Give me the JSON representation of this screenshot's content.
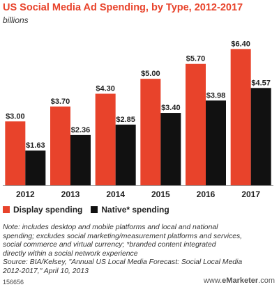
{
  "chart_data": {
    "type": "bar",
    "title": "US Social Media Ad Spending, by Type, 2012-2017",
    "subtitle": "billions",
    "categories": [
      "2012",
      "2013",
      "2014",
      "2015",
      "2016",
      "2017"
    ],
    "series": [
      {
        "name": "Display spending",
        "color": "#e8432b",
        "values": [
          3.0,
          3.7,
          4.3,
          5.0,
          5.7,
          6.4
        ],
        "labels": [
          "$3.00",
          "$3.70",
          "$4.30",
          "$5.00",
          "$5.70",
          "$6.40"
        ]
      },
      {
        "name": "Native* spending",
        "color": "#111111",
        "values": [
          1.63,
          2.36,
          2.85,
          3.4,
          3.98,
          4.57
        ],
        "labels": [
          "$1.63",
          "$2.36",
          "$2.85",
          "$3.40",
          "$3.98",
          "$4.57"
        ]
      }
    ],
    "ylim": [
      0,
      7
    ],
    "grid": false,
    "legend": "bottom-left"
  },
  "note": {
    "lines": [
      "Note: includes desktop and mobile platforms and local and national",
      "spending; excludes social marketing/measurement platforms and services,",
      "social commerce and virtual currency; *branded content integrated",
      "directly within a social network experience",
      "Source: BIA/Kelsey, \"Annual US Local Media Forecast: Social Local Media",
      "2012-2017,\" April 10, 2013"
    ]
  },
  "footer": {
    "id": "156656",
    "brand_www": "www.",
    "brand_main": "eMarketer",
    "brand_tld": ".com"
  }
}
